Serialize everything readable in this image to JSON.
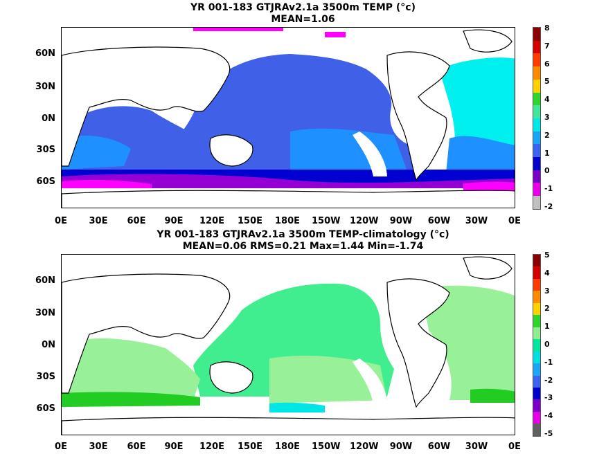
{
  "panel1": {
    "title_line1": "YR 001-183 GTJRAv2.1a 3500m TEMP (°c)",
    "title_line2": "MEAN=1.06",
    "colorbar_labels": [
      "8",
      "7",
      "6",
      "5",
      "4",
      "3",
      "2",
      "1",
      "0",
      "-1",
      "-2"
    ],
    "colorbar_colors": [
      "#8b0000",
      "#d40000",
      "#ff3c00",
      "#ff8c00",
      "#ffd200",
      "#2fd42f",
      "#44e69a",
      "#00e8e8",
      "#1aa5f5",
      "#3c64f0",
      "#0000c8",
      "#7a00c8",
      "#e800e8",
      "#c0c0c0"
    ],
    "fill_colors": {
      "band1": "#4060e8",
      "band2": "#1e90ff",
      "band3": "#00f0f0",
      "band_neg": "#0000d0",
      "band_neg2": "#9400d3",
      "band_neg3": "#ff00ff"
    }
  },
  "panel2": {
    "title_line1": "YR 001-183 GTJRAv2.1a 3500m TEMP-climatology (°c)",
    "title_line2": "MEAN=0.06   RMS=0.21   Max=1.44   Min=-1.74",
    "colorbar_labels": [
      "5",
      "4",
      "3",
      "2",
      "1",
      "0",
      "-1",
      "-2",
      "-3",
      "-4",
      "-5"
    ],
    "colorbar_colors": [
      "#8b0000",
      "#d40000",
      "#ff3c00",
      "#ff8c00",
      "#ffd200",
      "#2fd42f",
      "#90ee90",
      "#00e8a0",
      "#00e0e0",
      "#1aa5f5",
      "#3c64f0",
      "#0000c8",
      "#7a00c8",
      "#e800e8",
      "#606060"
    ],
    "fill_colors": {
      "main": "#40ee90",
      "light": "#98f098",
      "strong": "#22cc22",
      "cool": "#00e5e5"
    }
  },
  "lat_labels": [
    "60N",
    "30N",
    "0N",
    "30S",
    "60S"
  ],
  "lon_labels": [
    "0E",
    "30E",
    "60E",
    "90E",
    "120E",
    "150E",
    "180E",
    "150W",
    "120W",
    "90W",
    "60W",
    "30W",
    "0E"
  ]
}
